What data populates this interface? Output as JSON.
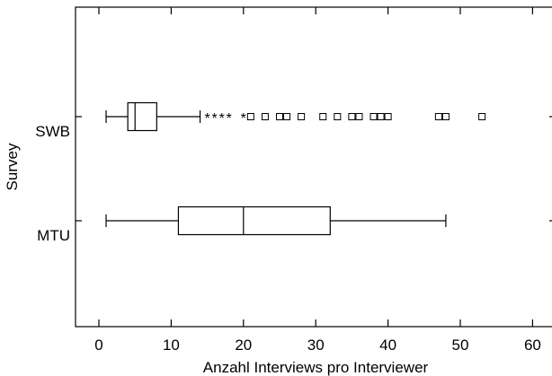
{
  "chart_data": {
    "type": "boxplot",
    "orientation": "horizontal",
    "xlabel": "Anzahl Interviews pro Interviewer",
    "ylabel": "Survey",
    "xlim": [
      -3,
      62
    ],
    "xticks": [
      0,
      10,
      20,
      30,
      40,
      50,
      60
    ],
    "grid": false,
    "series": [
      {
        "name": "SWB",
        "whisker_low": 1,
        "q1": 4,
        "median": 5,
        "q3": 8,
        "whisker_high": 14,
        "far_outliers_star": [
          15,
          16,
          17,
          18,
          20
        ],
        "outliers_square": [
          21,
          23,
          25,
          26,
          28,
          31,
          33,
          35,
          36,
          38,
          39,
          40,
          47,
          48,
          53
        ]
      },
      {
        "name": "MTU",
        "whisker_low": 1,
        "q1": 11,
        "median": 20,
        "q3": 32,
        "whisker_high": 48,
        "far_outliers_star": [],
        "outliers_square": []
      }
    ]
  }
}
